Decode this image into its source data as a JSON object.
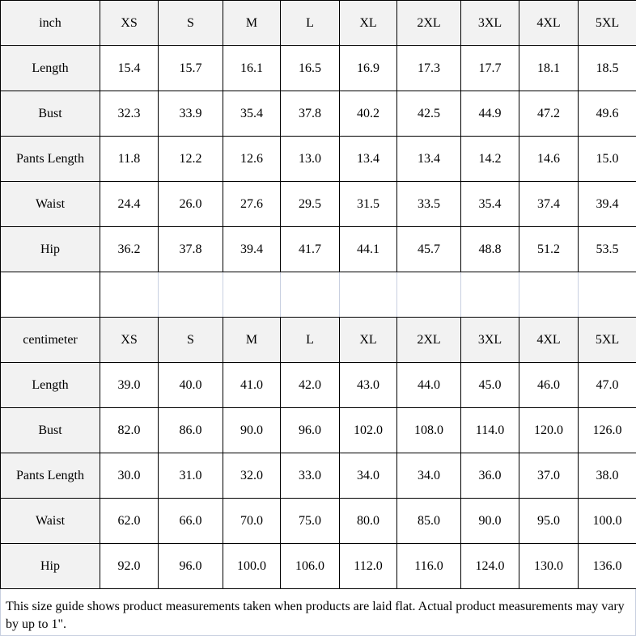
{
  "sizes": [
    "XS",
    "S",
    "M",
    "L",
    "XL",
    "2XL",
    "3XL",
    "4XL",
    "5XL"
  ],
  "tables": [
    {
      "unit": "inch",
      "rows": [
        {
          "label": "Length",
          "values": [
            "15.4",
            "15.7",
            "16.1",
            "16.5",
            "16.9",
            "17.3",
            "17.7",
            "18.1",
            "18.5"
          ]
        },
        {
          "label": "Bust",
          "values": [
            "32.3",
            "33.9",
            "35.4",
            "37.8",
            "40.2",
            "42.5",
            "44.9",
            "47.2",
            "49.6"
          ]
        },
        {
          "label": "Pants Length",
          "values": [
            "11.8",
            "12.2",
            "12.6",
            "13.0",
            "13.4",
            "13.4",
            "14.2",
            "14.6",
            "15.0"
          ]
        },
        {
          "label": "Waist",
          "values": [
            "24.4",
            "26.0",
            "27.6",
            "29.5",
            "31.5",
            "33.5",
            "35.4",
            "37.4",
            "39.4"
          ]
        },
        {
          "label": "Hip",
          "values": [
            "36.2",
            "37.8",
            "39.4",
            "41.7",
            "44.1",
            "45.7",
            "48.8",
            "51.2",
            "53.5"
          ]
        }
      ]
    },
    {
      "unit": "centimeter",
      "rows": [
        {
          "label": "Length",
          "values": [
            "39.0",
            "40.0",
            "41.0",
            "42.0",
            "43.0",
            "44.0",
            "45.0",
            "46.0",
            "47.0"
          ]
        },
        {
          "label": "Bust",
          "values": [
            "82.0",
            "86.0",
            "90.0",
            "96.0",
            "102.0",
            "108.0",
            "114.0",
            "120.0",
            "126.0"
          ]
        },
        {
          "label": "Pants Length",
          "values": [
            "30.0",
            "31.0",
            "32.0",
            "33.0",
            "34.0",
            "34.0",
            "36.0",
            "37.0",
            "38.0"
          ]
        },
        {
          "label": "Waist",
          "values": [
            "62.0",
            "66.0",
            "70.0",
            "75.0",
            "80.0",
            "85.0",
            "90.0",
            "95.0",
            "100.0"
          ]
        },
        {
          "label": "Hip",
          "values": [
            "92.0",
            "96.0",
            "100.0",
            "106.0",
            "112.0",
            "116.0",
            "124.0",
            "130.0",
            "136.0"
          ]
        }
      ]
    }
  ],
  "note": "This size guide shows product measurements taken when products are laid flat. Actual product measurements may vary by up to 1\"."
}
